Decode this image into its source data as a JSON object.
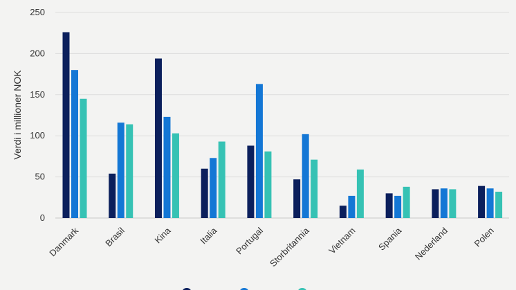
{
  "chart_data": {
    "type": "bar",
    "title": "",
    "xlabel": "",
    "ylabel": "Verdi i millioner NOK",
    "ylim": [
      0,
      250
    ],
    "yticks": [
      0,
      50,
      100,
      150,
      200,
      250
    ],
    "grid": true,
    "legend_position": "bottom",
    "categories": [
      "Danmark",
      "Brasil",
      "Kina",
      "Italia",
      "Portugal",
      "Storbritannia",
      "Vietnam",
      "Spania",
      "Nederland",
      "Polen"
    ],
    "series": [
      {
        "color": "#0b1f5c",
        "values": [
          226,
          54,
          194,
          60,
          88,
          47,
          15,
          30,
          35,
          39
        ]
      },
      {
        "color": "#1477d5",
        "values": [
          180,
          116,
          123,
          73,
          163,
          102,
          27,
          27,
          36,
          36
        ]
      },
      {
        "color": "#36c2b4",
        "values": [
          145,
          114,
          103,
          93,
          81,
          71,
          59,
          38,
          35,
          32
        ]
      }
    ]
  }
}
